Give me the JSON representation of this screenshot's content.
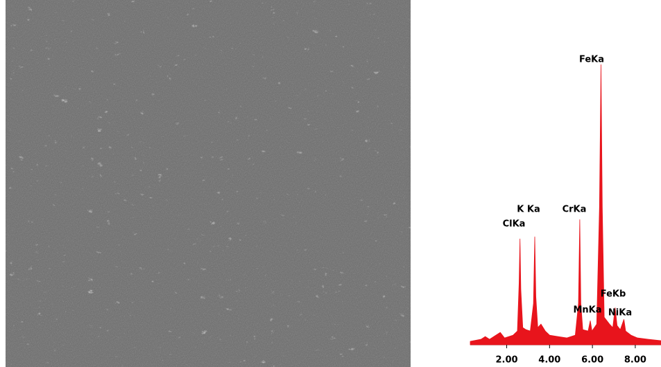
{
  "chart_data": {
    "type": "area",
    "color": "#e8141c",
    "x": [
      0.3,
      0.8,
      1.0,
      1.2,
      1.5,
      1.7,
      1.9,
      2.1,
      2.3,
      2.5,
      2.58,
      2.62,
      2.66,
      2.75,
      2.9,
      3.1,
      3.25,
      3.31,
      3.36,
      3.45,
      3.6,
      3.8,
      4.0,
      4.4,
      4.8,
      5.2,
      5.35,
      5.41,
      5.46,
      5.55,
      5.8,
      5.9,
      5.98,
      6.2,
      6.33,
      6.4,
      6.46,
      6.55,
      6.8,
      6.95,
      7.06,
      7.15,
      7.3,
      7.47,
      7.55,
      7.8,
      8.1,
      8.6,
      9.2
    ],
    "values": [
      5,
      8,
      12,
      8,
      14,
      18,
      10,
      12,
      14,
      20,
      90,
      154,
      80,
      25,
      22,
      20,
      60,
      157,
      70,
      25,
      30,
      20,
      14,
      12,
      10,
      14,
      60,
      182,
      60,
      22,
      20,
      35,
      20,
      30,
      200,
      407,
      200,
      40,
      30,
      25,
      54,
      28,
      22,
      37,
      20,
      14,
      10,
      8,
      6
    ],
    "xlim": [
      0.3,
      9.2
    ],
    "ylim": [
      0,
      420
    ],
    "xticks": [
      {
        "value": 2,
        "label": "2.00"
      },
      {
        "value": 4,
        "label": "4.00"
      },
      {
        "value": 6,
        "label": "6.00"
      },
      {
        "value": 8,
        "label": "8.00"
      }
    ],
    "annotations": [
      "FeKa",
      "K Ka",
      "ClKa",
      "CrKa",
      "FeKb",
      "MnKa",
      "NiKa"
    ]
  }
}
